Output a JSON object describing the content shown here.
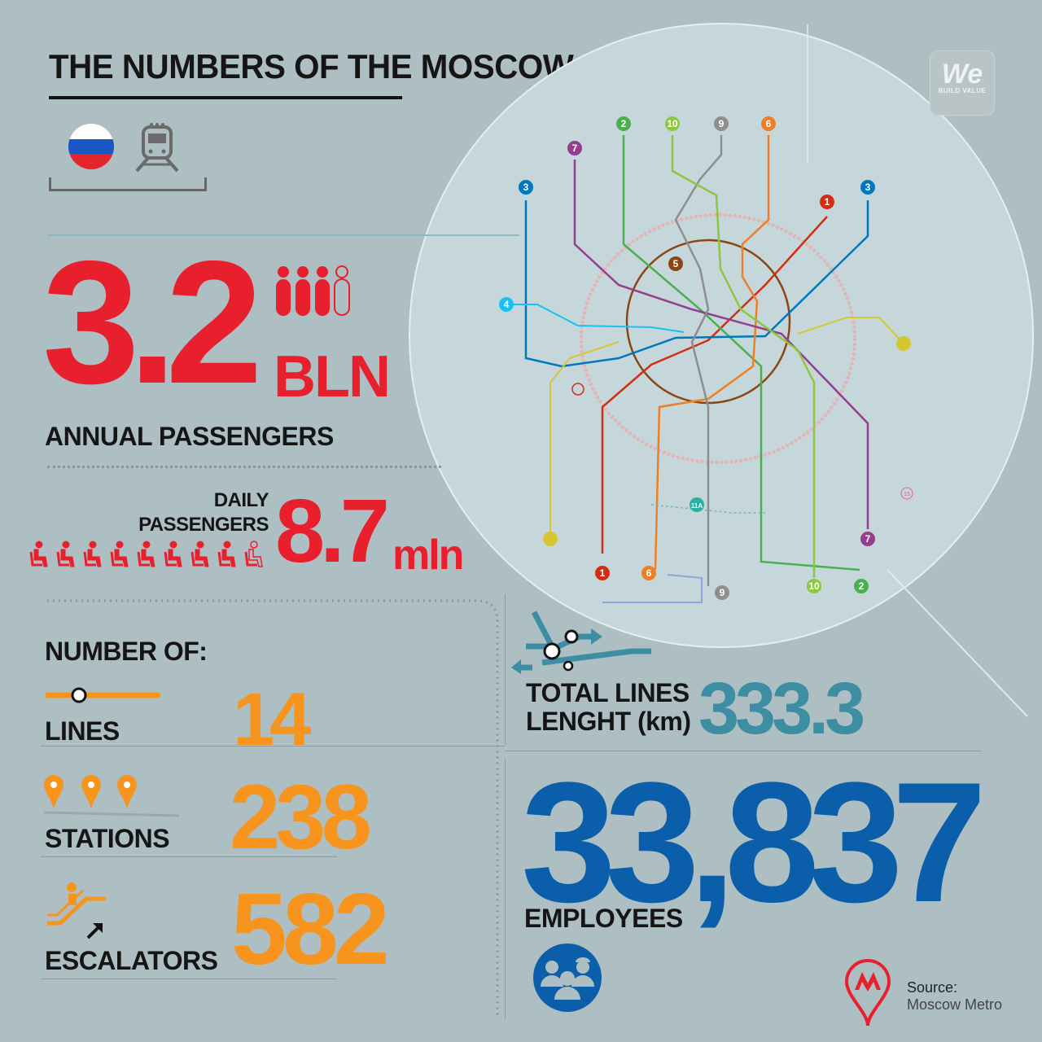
{
  "header": {
    "title": "THE NUMBERS OF THE MOSCOW METRO"
  },
  "badge": {
    "logo_text": "We",
    "tagline": "BUILD VALUE"
  },
  "passengers": {
    "annual_value": "3.2",
    "annual_unit": "BLN",
    "annual_label": "ANNUAL PASSENGERS",
    "daily_label_1": "DAILY",
    "daily_label_2": "PASSENGERS",
    "daily_value": "8.7",
    "daily_unit": "mln"
  },
  "counts": {
    "heading": "NUMBER OF:",
    "lines_label": "LINES",
    "lines_value": "14",
    "stations_label": "STATIONS",
    "stations_value": "238",
    "escalators_label": "ESCALATORS",
    "escalators_value": "582"
  },
  "length": {
    "label_1": "TOTAL LINES",
    "label_2": "LENGHT (km)",
    "value": "333.3"
  },
  "employees": {
    "value": "33,837",
    "label": "EMPLOYEES"
  },
  "source": {
    "label": "Source:",
    "name": "Moscow Metro"
  },
  "map": {
    "line_labels": [
      "1",
      "2",
      "3",
      "4",
      "5",
      "6",
      "7",
      "9",
      "10",
      "11A",
      "15"
    ],
    "colors": {
      "1": "#d42e12",
      "2": "#4baf4f",
      "3": "#0078be",
      "4": "#19c1f3",
      "5": "#8b4513",
      "6": "#ef7e24",
      "7": "#943e90",
      "9": "#8e8e8e",
      "10": "#8dc63f",
      "11": "#29b1a6",
      "12": "#d6c630",
      "15": "#de64a1"
    }
  },
  "colors": {
    "background": "#aebfc4",
    "red": "#e8202e",
    "orange": "#f7941d",
    "teal": "#3d8ea3",
    "blue": "#0b5faa"
  }
}
